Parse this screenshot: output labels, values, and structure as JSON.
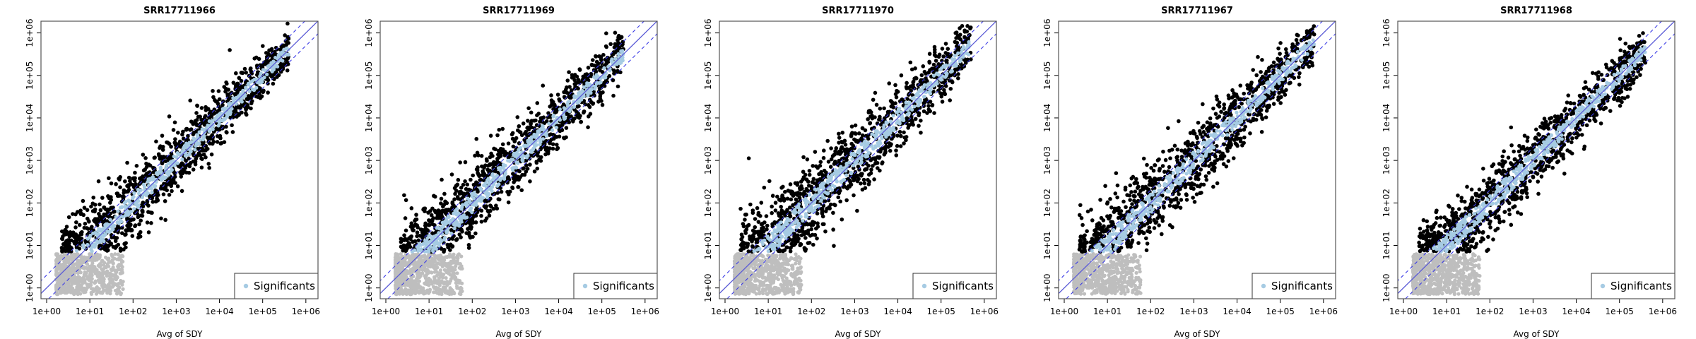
{
  "figure": {
    "background": "#ffffff"
  },
  "colors": {
    "significant": "#a6cbe3",
    "nonsignificant_high": "#000000",
    "low_count": "#bebebe",
    "identity_line": "#5b5bd6",
    "fold_lines": "#3a3ae6",
    "frame": "#555555"
  },
  "chart_data": [
    {
      "type": "scatter",
      "title": "SRR17711966",
      "xlabel": "Avg of SDY",
      "ylabel": "",
      "xscale": "log",
      "yscale": "log",
      "xlim": [
        1,
        1000000
      ],
      "ylim": [
        0.7,
        1500000
      ],
      "xticks": [
        "1e+00",
        "1e+01",
        "1e+02",
        "1e+03",
        "1e+04",
        "1e+05",
        "1e+06"
      ],
      "yticks": [
        "1e+00",
        "1e+01",
        "1e+02",
        "1e+03",
        "1e+04",
        "1e+05",
        "1e+06"
      ],
      "reference_lines": {
        "identity": "y = x",
        "fold_bands": [
          0.5,
          2
        ]
      },
      "series_description": {
        "spread": 0.35,
        "max_x_log": 5.6,
        "outliers": [
          [
            2.75,
            1.6
          ]
        ]
      },
      "legend": {
        "entries": [
          "Significants"
        ],
        "position": "bottom-right"
      },
      "seed": 11
    },
    {
      "type": "scatter",
      "title": "SRR17711969",
      "xlabel": "Avg of SDY",
      "ylabel": "",
      "xscale": "log",
      "yscale": "log",
      "xlim": [
        1,
        1000000
      ],
      "ylim": [
        0.7,
        1500000
      ],
      "xticks": [
        "1e+00",
        "1e+01",
        "1e+02",
        "1e+03",
        "1e+04",
        "1e+05",
        "1e+06"
      ],
      "yticks": [
        "1e+00",
        "1e+01",
        "1e+02",
        "1e+03",
        "1e+04",
        "1e+05",
        "1e+06"
      ],
      "reference_lines": {
        "identity": "y = x",
        "fold_bands": [
          0.5,
          2
        ]
      },
      "series_description": {
        "spread": 0.38,
        "max_x_log": 5.5,
        "outliers": []
      },
      "legend": {
        "entries": [
          "Significants"
        ],
        "position": "bottom-right"
      },
      "seed": 23
    },
    {
      "type": "scatter",
      "title": "SRR17711970",
      "xlabel": "Avg of SDY",
      "ylabel": "",
      "xscale": "log",
      "yscale": "log",
      "xlim": [
        1,
        1000000
      ],
      "ylim": [
        0.7,
        1500000
      ],
      "xticks": [
        "1e+00",
        "1e+01",
        "1e+02",
        "1e+03",
        "1e+04",
        "1e+05",
        "1e+06"
      ],
      "yticks": [
        "1e+00",
        "1e+01",
        "1e+02",
        "1e+03",
        "1e+04",
        "1e+05",
        "1e+06"
      ],
      "reference_lines": {
        "identity": "y = x",
        "fold_bands": [
          0.5,
          2
        ]
      },
      "series_description": {
        "spread": 0.42,
        "max_x_log": 5.7,
        "outliers": [
          [
            0.55,
            3.05
          ]
        ]
      },
      "legend": {
        "entries": [
          "Significants"
        ],
        "position": "bottom-right"
      },
      "seed": 37
    },
    {
      "type": "scatter",
      "title": "SRR17711967",
      "xlabel": "Avg of SDY",
      "ylabel": "",
      "xscale": "log",
      "yscale": "log",
      "xlim": [
        1,
        1000000
      ],
      "ylim": [
        0.7,
        1500000
      ],
      "xticks": [
        "1e+00",
        "1e+01",
        "1e+02",
        "1e+03",
        "1e+04",
        "1e+05",
        "1e+06"
      ],
      "yticks": [
        "1e+00",
        "1e+01",
        "1e+02",
        "1e+03",
        "1e+04",
        "1e+05",
        "1e+06"
      ],
      "reference_lines": {
        "identity": "y = x",
        "fold_bands": [
          0.5,
          2
        ]
      },
      "series_description": {
        "spread": 0.4,
        "max_x_log": 5.8,
        "outliers": [
          [
            0.95,
            2.4
          ],
          [
            1.2,
            2.7
          ]
        ]
      },
      "legend": {
        "entries": [
          "Significants"
        ],
        "position": "bottom-right"
      },
      "seed": 53
    },
    {
      "type": "scatter",
      "title": "SRR17711968",
      "xlabel": "Avg of SDY",
      "ylabel": "",
      "xscale": "log",
      "yscale": "log",
      "xlim": [
        1,
        1000000
      ],
      "ylim": [
        0.7,
        1500000
      ],
      "xticks": [
        "1e+00",
        "1e+01",
        "1e+02",
        "1e+03",
        "1e+04",
        "1e+05",
        "1e+06"
      ],
      "yticks": [
        "1e+00",
        "1e+01",
        "1e+02",
        "1e+03",
        "1e+04",
        "1e+05",
        "1e+06"
      ],
      "reference_lines": {
        "identity": "y = x",
        "fold_bands": [
          0.5,
          2
        ]
      },
      "series_description": {
        "spread": 0.36,
        "max_x_log": 5.6,
        "outliers": []
      },
      "legend": {
        "entries": [
          "Significants"
        ],
        "position": "bottom-right"
      },
      "seed": 71
    }
  ]
}
